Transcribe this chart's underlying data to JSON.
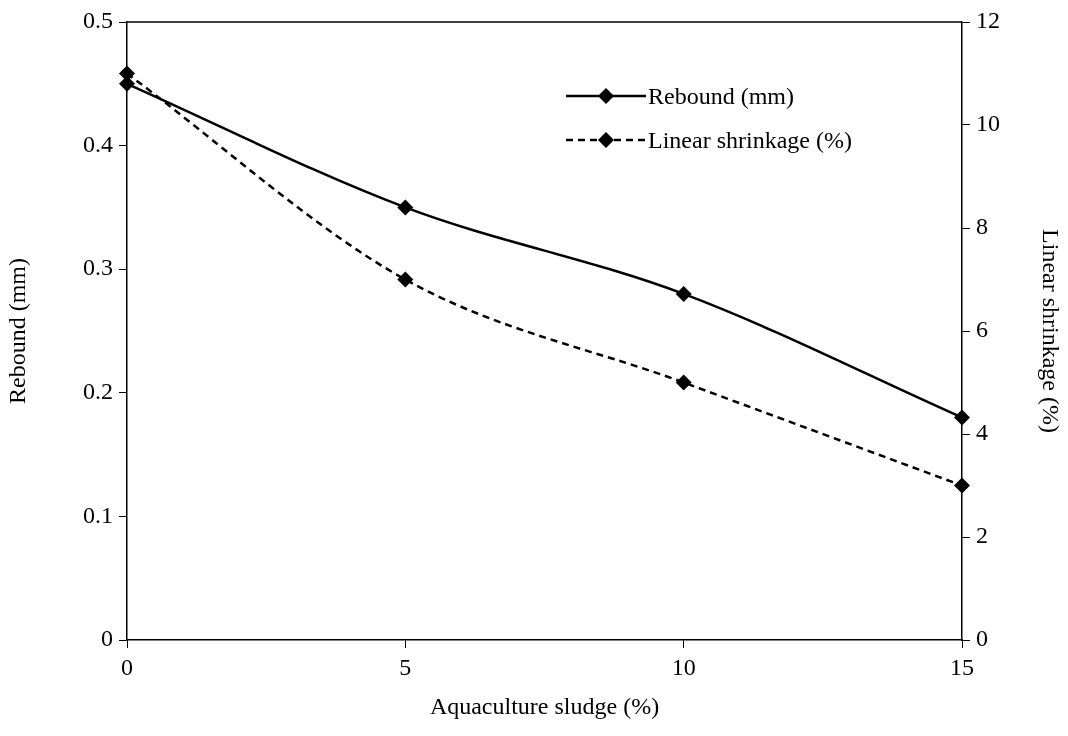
{
  "chart_data": {
    "type": "line",
    "xlabel": "Aquaculture sludge (%)",
    "ylabel": "Rebound (mm)",
    "y2label": "Linear shrinkage (%)",
    "x": [
      0,
      5,
      10,
      15
    ],
    "series": [
      {
        "name": "Rebound (mm)",
        "color": "#000000",
        "values": [
          0.45,
          0.35,
          0.28,
          0.18
        ],
        "line_style": "solid"
      },
      {
        "name": "Linear shrinkage (%)",
        "color": "#000000",
        "values": [
          11,
          7,
          5,
          3
        ],
        "axis": "y2",
        "line_style": "dashed"
      }
    ],
    "xlim": [
      0,
      15
    ],
    "xticks": [
      0,
      5,
      10,
      15
    ],
    "ylim": [
      0,
      0.5
    ],
    "yticks": [
      0,
      0.1,
      0.2,
      0.3,
      0.4,
      0.5
    ],
    "y2lim": [
      0,
      12
    ],
    "y2ticks": [
      0,
      2,
      4,
      6,
      8,
      10,
      12
    ],
    "marker": "diamond",
    "grid": false,
    "legend": "top right"
  }
}
